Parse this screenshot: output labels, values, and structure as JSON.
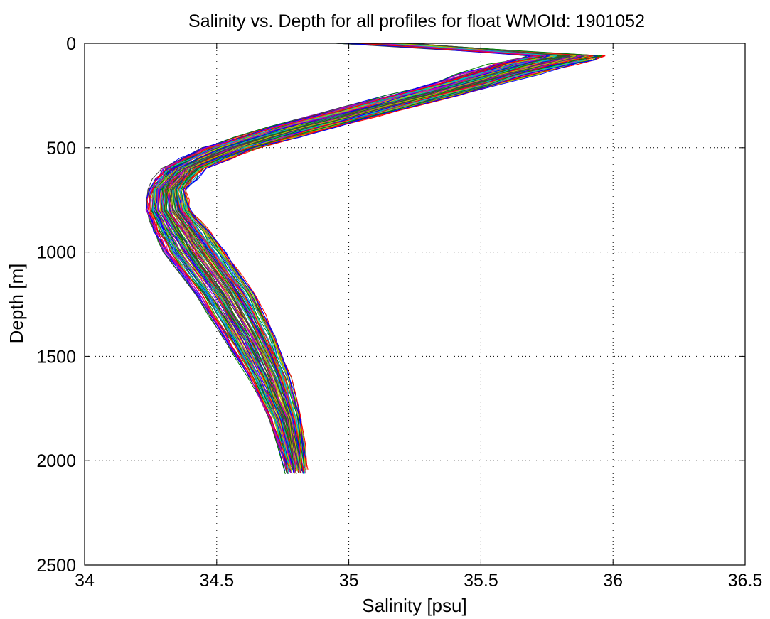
{
  "chart_data": {
    "type": "line",
    "title": "Salinity vs. Depth for all profiles for float WMOId: 1901052",
    "xlabel": "Salinity [psu]",
    "ylabel": "Depth [m]",
    "xlim": [
      34,
      36.5
    ],
    "ylim": [
      0,
      2500
    ],
    "y_reversed": true,
    "grid": true,
    "grid_style": "dotted",
    "x_ticks": [
      34,
      34.5,
      35,
      35.5,
      36,
      36.5
    ],
    "x_tick_labels": [
      "34",
      "34.5",
      "35",
      "35.5",
      "36",
      "36.5"
    ],
    "y_ticks": [
      0,
      500,
      1000,
      1500,
      2000,
      2500
    ],
    "y_tick_labels": [
      "0",
      "500",
      "1000",
      "1500",
      "2000",
      "2500"
    ],
    "series_colors": [
      "#0000ff",
      "#008000",
      "#ff0000",
      "#00bfbf",
      "#bf00bf",
      "#bfbf00",
      "#404040"
    ],
    "profile_count": 140,
    "representative_profiles": [
      {
        "depth": [
          5,
          60,
          100,
          200,
          300,
          400,
          500,
          600,
          700,
          800,
          900,
          1000,
          1200,
          1400,
          1600,
          1800,
          2000,
          2040
        ],
        "salinity": [
          35.05,
          35.97,
          35.85,
          35.55,
          35.25,
          34.95,
          34.65,
          34.45,
          34.38,
          34.4,
          34.47,
          34.53,
          34.64,
          34.72,
          34.78,
          34.82,
          34.84,
          34.84
        ]
      },
      {
        "depth": [
          5,
          60,
          100,
          200,
          300,
          400,
          500,
          600,
          700,
          800,
          900,
          1000,
          1200,
          1400,
          1600,
          1800,
          2000,
          2050
        ],
        "salinity": [
          35.15,
          35.7,
          35.55,
          35.3,
          35.0,
          34.7,
          34.45,
          34.3,
          34.24,
          34.23,
          34.26,
          34.3,
          34.42,
          34.52,
          34.62,
          34.7,
          34.75,
          34.76
        ]
      }
    ]
  }
}
